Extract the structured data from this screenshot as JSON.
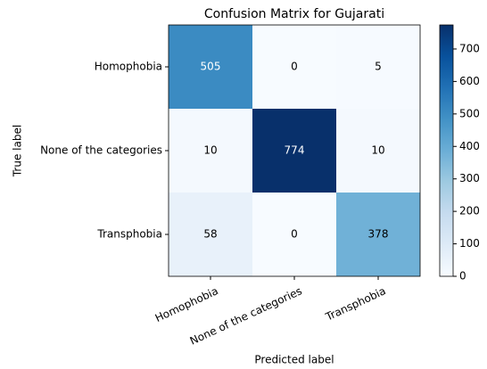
{
  "chart_data": {
    "type": "heatmap",
    "title": "Confusion Matrix for Gujarati",
    "x_label": "Predicted label",
    "y_label": "True label",
    "x_categories": [
      "Homophobia",
      "None of the categories",
      "Transphobia"
    ],
    "y_categories": [
      "Homophobia",
      "None of the categories",
      "Transphobia"
    ],
    "values": [
      [
        505,
        0,
        5
      ],
      [
        10,
        774,
        10
      ],
      [
        58,
        0,
        378
      ]
    ],
    "colormap": "Blues",
    "clim": [
      0,
      774
    ],
    "cticks": [
      0,
      100,
      200,
      300,
      400,
      500,
      600,
      700
    ]
  }
}
